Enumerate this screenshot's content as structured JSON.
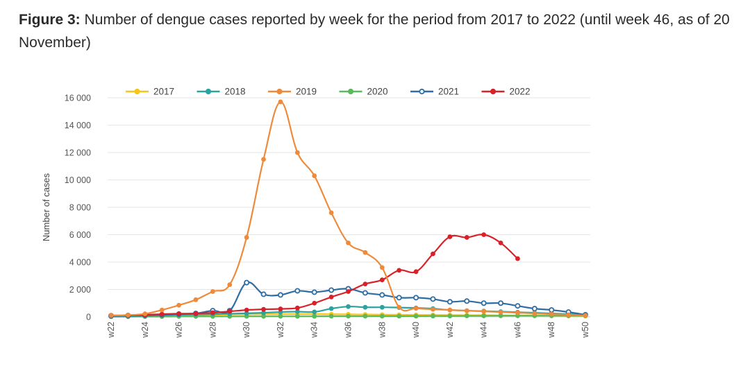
{
  "caption": {
    "label": "Figure 3:",
    "text": " Number of dengue cases reported by week for the period from 2017 to 2022 (until week 46, as of 20 November)"
  },
  "chart_data": {
    "type": "line",
    "title": "",
    "xlabel": "",
    "ylabel": "Number of cases",
    "ylim": [
      0,
      16000
    ],
    "yticks": [
      0,
      2000,
      4000,
      6000,
      8000,
      10000,
      12000,
      14000,
      16000
    ],
    "ytick_labels": [
      "0",
      "2 000",
      "4 000",
      "6 000",
      "8 000",
      "10 000",
      "12 000",
      "14 000",
      "16 000"
    ],
    "grid": true,
    "legend_position": "top",
    "x": [
      "w22",
      "w23",
      "w24",
      "w25",
      "w26",
      "w27",
      "w28",
      "w29",
      "w30",
      "w31",
      "w32",
      "w33",
      "w34",
      "w35",
      "w36",
      "w37",
      "w38",
      "w39",
      "w40",
      "w41",
      "w42",
      "w43",
      "w44",
      "w45",
      "w46",
      "w47",
      "w48",
      "w49",
      "w50"
    ],
    "xtick_labels": [
      "w22",
      "w24",
      "w26",
      "w28",
      "w30",
      "w32",
      "w34",
      "w36",
      "w38",
      "w40",
      "w42",
      "w44",
      "w46",
      "w48",
      "w50"
    ],
    "series": [
      {
        "name": "2017",
        "color": "#f5c518",
        "marker": "filled",
        "values": [
          20,
          40,
          60,
          80,
          100,
          120,
          150,
          170,
          180,
          190,
          200,
          200,
          200,
          190,
          180,
          170,
          160,
          150,
          140,
          140,
          130,
          120,
          120,
          110,
          100,
          90,
          80,
          70,
          60
        ]
      },
      {
        "name": "2018",
        "color": "#2ba3a0",
        "marker": "filled",
        "values": [
          30,
          60,
          80,
          120,
          150,
          170,
          200,
          230,
          260,
          300,
          350,
          380,
          360,
          600,
          750,
          700,
          700,
          680,
          650,
          600,
          500,
          450,
          420,
          380,
          340,
          300,
          250,
          200,
          150
        ]
      },
      {
        "name": "2019",
        "color": "#ee8a3a",
        "marker": "filled",
        "values": [
          100,
          130,
          220,
          500,
          850,
          1250,
          1850,
          2350,
          5800,
          11500,
          15700,
          12000,
          10300,
          7600,
          5400,
          4700,
          3600,
          700,
          620,
          550,
          500,
          450,
          400,
          350,
          300,
          250,
          200,
          150,
          100
        ]
      },
      {
        "name": "2020",
        "color": "#5cb85c",
        "marker": "filled",
        "values": [
          10,
          10,
          20,
          20,
          30,
          30,
          30,
          30,
          40,
          40,
          40,
          40,
          40,
          50,
          50,
          50,
          50,
          50,
          50,
          60,
          60,
          70,
          70,
          80,
          80,
          80,
          80,
          80,
          80
        ]
      },
      {
        "name": "2021",
        "color": "#2e6da4",
        "marker": "open",
        "values": [
          80,
          100,
          120,
          150,
          200,
          250,
          450,
          450,
          2500,
          1650,
          1600,
          1900,
          1800,
          1950,
          2050,
          1750,
          1600,
          1400,
          1400,
          1300,
          1100,
          1150,
          1000,
          1000,
          800,
          600,
          500,
          350,
          150
        ]
      },
      {
        "name": "2022",
        "color": "#d9212a",
        "marker": "filled",
        "values": [
          100,
          100,
          150,
          200,
          230,
          250,
          300,
          400,
          500,
          550,
          580,
          650,
          1000,
          1450,
          1850,
          2400,
          2700,
          3400,
          3300,
          4600,
          5850,
          5800,
          6000,
          5400,
          4250,
          null,
          null,
          null,
          null
        ]
      }
    ]
  }
}
